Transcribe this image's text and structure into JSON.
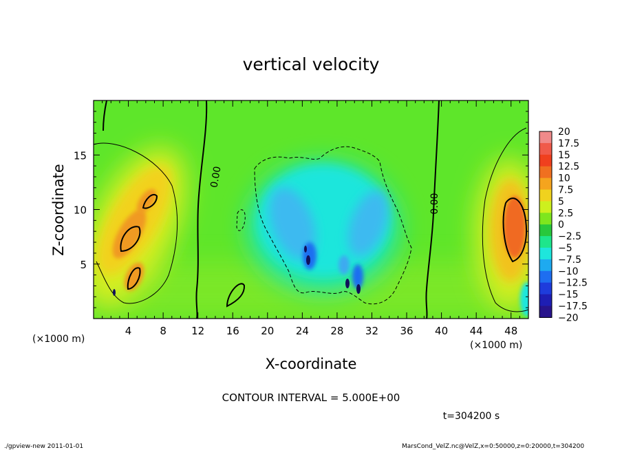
{
  "chart_data": {
    "type": "heatmap",
    "title": "vertical velocity",
    "xlabel": "X-coordinate",
    "ylabel": "Z-coordinate",
    "x_unit": "(×1000 m)",
    "x_unit_right": "(×1000 m)",
    "xlim": [
      0,
      50
    ],
    "ylim": [
      0,
      20
    ],
    "x_ticks": [
      "4",
      "8",
      "12",
      "16",
      "20",
      "24",
      "28",
      "32",
      "36",
      "40",
      "44",
      "48"
    ],
    "y_ticks": [
      "5",
      "10",
      "15"
    ],
    "contour_labels": [
      "0.00",
      "0.00"
    ],
    "colorbar": {
      "labels": [
        "20",
        "17.5",
        "15",
        "12.5",
        "10",
        "7.5",
        "5",
        "2.5",
        "0",
        "−2.5",
        "−5",
        "−7.5",
        "−10",
        "−12.5",
        "−15",
        "−17.5",
        "−20"
      ],
      "colors": [
        "#f08a8a",
        "#f05a4a",
        "#f0401e",
        "#f07020",
        "#f5a41e",
        "#f0d21e",
        "#cdf01e",
        "#7ee61e",
        "#28c83c",
        "#1ee68c",
        "#1ee6dc",
        "#1eaaf0",
        "#1e6ef0",
        "#1e3cdc",
        "#1e1eb4",
        "#28148c",
        "#5a1eaa"
      ]
    },
    "contour_interval": "CONTOUR INTERVAL = 5.000E+00",
    "time": "t=304200 s",
    "features": [
      {
        "x": 5,
        "z": 8,
        "value": 10
      },
      {
        "x": 4.2,
        "z": 3.5,
        "value": 10
      },
      {
        "x": 48,
        "z": 8.5,
        "value": 12.5
      },
      {
        "x": 27,
        "z": 7,
        "value": -7.5
      }
    ]
  },
  "footer": {
    "left": "./gpview-new  2011-01-01",
    "right": "MarsCond_VelZ.nc@VelZ,x=0:50000,z=0:20000,t=304200"
  }
}
